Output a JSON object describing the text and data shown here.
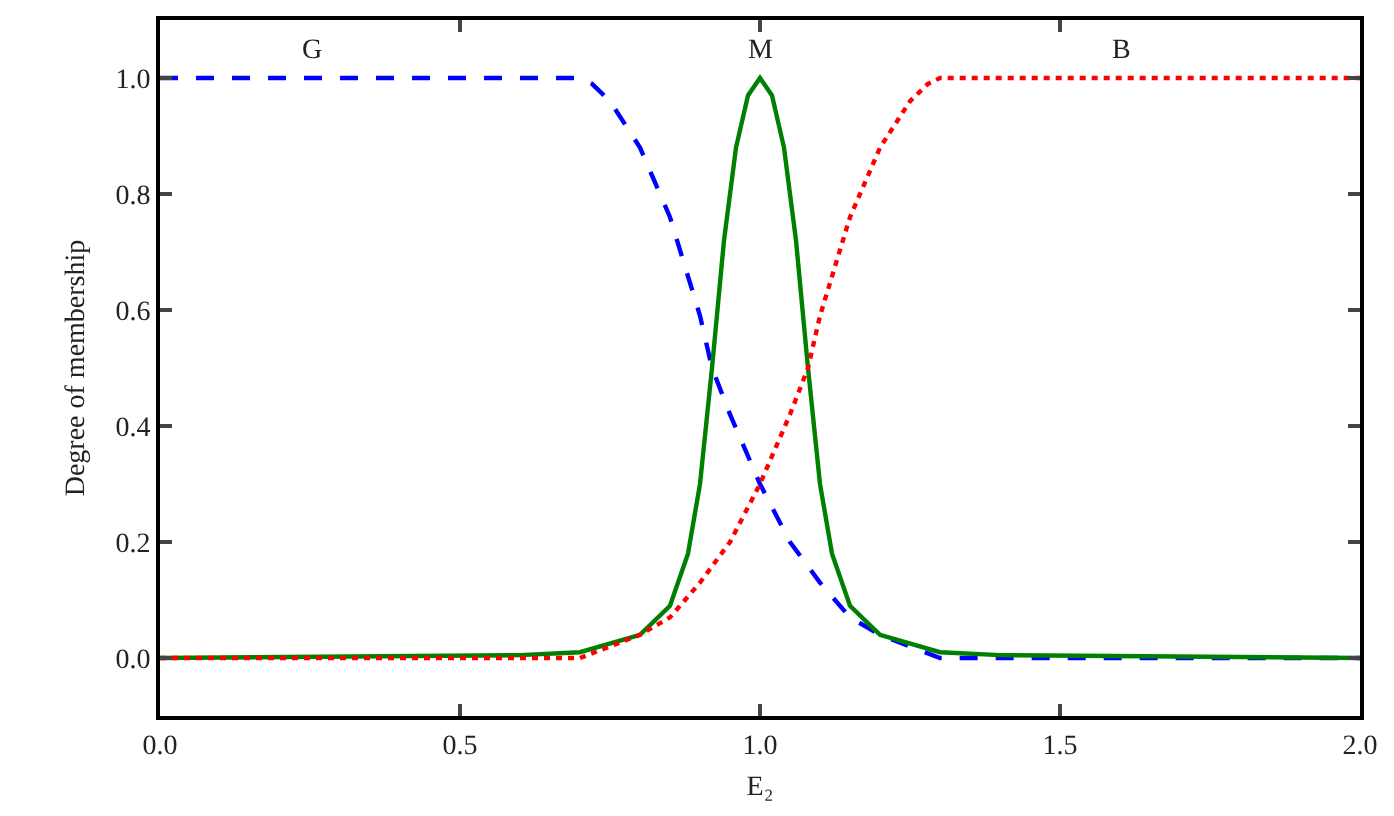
{
  "chart_data": {
    "type": "line",
    "xlabel": "E₂",
    "ylabel": "Degree of membership",
    "xlim": [
      0,
      2
    ],
    "xticks": [
      {
        "value": 0,
        "label": "0.0"
      },
      {
        "value": 0.5,
        "label": "0.5"
      },
      {
        "value": 1,
        "label": "1.0"
      },
      {
        "value": 1.5,
        "label": "1.5"
      },
      {
        "value": 2,
        "label": "2.0"
      }
    ],
    "ylim": [
      -0.1,
      1.1
    ],
    "yticks": [
      {
        "value": 0,
        "label": "0.0"
      },
      {
        "value": 0.2,
        "label": "0.2"
      },
      {
        "value": 0.4,
        "label": "0.4"
      },
      {
        "value": 0.6,
        "label": "0.6"
      },
      {
        "value": 0.8,
        "label": "0.8"
      },
      {
        "value": 1,
        "label": "1.0"
      }
    ],
    "grid": false,
    "legend": false,
    "series": [
      {
        "name": "G",
        "color": "#0000ff",
        "line_style": "dashed",
        "x": [
          0,
          0.7,
          0.72,
          0.75,
          0.8,
          0.85,
          0.9,
          0.92,
          0.95,
          1.0,
          1.05,
          1.1,
          1.15,
          1.2,
          1.25,
          1.3,
          2.0
        ],
        "values": [
          1,
          1,
          0.99,
          0.96,
          0.88,
          0.76,
          0.59,
          0.5,
          0.42,
          0.3,
          0.2,
          0.13,
          0.07,
          0.04,
          0.02,
          0,
          0
        ]
      },
      {
        "name": "M",
        "color": "#008000",
        "line_style": "solid",
        "x": [
          0,
          0.6,
          0.7,
          0.8,
          0.85,
          0.88,
          0.9,
          0.92,
          0.94,
          0.96,
          0.98,
          1.0,
          1.02,
          1.04,
          1.06,
          1.08,
          1.1,
          1.12,
          1.15,
          1.2,
          1.3,
          1.4,
          2.0
        ],
        "values": [
          0,
          0.005,
          0.01,
          0.04,
          0.09,
          0.18,
          0.3,
          0.5,
          0.72,
          0.88,
          0.97,
          1.0,
          0.97,
          0.88,
          0.72,
          0.5,
          0.3,
          0.18,
          0.09,
          0.04,
          0.01,
          0.005,
          0
        ]
      },
      {
        "name": "B",
        "color": "#ff0000",
        "line_style": "dotted",
        "x": [
          0,
          0.7,
          0.75,
          0.8,
          0.85,
          0.9,
          0.95,
          1.0,
          1.05,
          1.08,
          1.1,
          1.15,
          1.2,
          1.25,
          1.28,
          1.3,
          2.0
        ],
        "values": [
          0,
          0,
          0.02,
          0.04,
          0.07,
          0.13,
          0.2,
          0.3,
          0.42,
          0.5,
          0.59,
          0.76,
          0.88,
          0.96,
          0.99,
          1,
          1
        ]
      }
    ]
  }
}
